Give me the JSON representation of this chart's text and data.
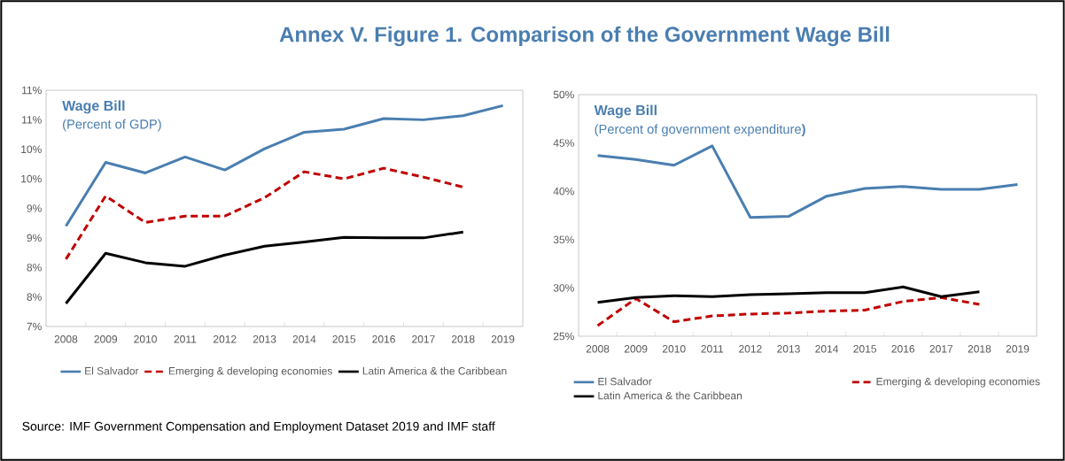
{
  "chart_data": [
    {
      "type": "line",
      "title": "Wage Bill",
      "subtitle": "(Percent of GDP)",
      "annotations": [
        "Annex V. Figure 1. Comparison of the Government Wage Bill",
        "Source: IMF Government Compensation and Employment Dataset 2019 and IMF staff"
      ],
      "categories": [
        "2008",
        "2009",
        "2010",
        "2011",
        "2012",
        "2013",
        "2014",
        "2015",
        "2016",
        "2017",
        "2018",
        "2019"
      ],
      "series": [
        {
          "name": "El Salvador",
          "color": "#4a7eb0",
          "line_style": "solid",
          "values": [
            8.7,
            9.78,
            9.6,
            9.87,
            9.65,
            10.01,
            10.29,
            10.34,
            10.52,
            10.5,
            10.57,
            10.74
          ]
        },
        {
          "name": "Emerging & developing economies",
          "color": "#c00000",
          "line_style": "dashed",
          "values": [
            8.14,
            9.21,
            8.76,
            8.87,
            8.87,
            9.18,
            9.62,
            9.5,
            9.68,
            9.53,
            9.36,
            null
          ]
        },
        {
          "name": "Latin America & the Caribbean",
          "color": "#000000",
          "line_style": "solid",
          "values": [
            7.39,
            8.24,
            8.08,
            8.02,
            8.21,
            8.36,
            8.43,
            8.51,
            8.5,
            8.5,
            8.6,
            null
          ]
        }
      ],
      "ylim": [
        7,
        11
      ],
      "yticks": [
        {
          "value": 7,
          "label": "7%"
        },
        {
          "value": 7.5,
          "label": "8%"
        },
        {
          "value": 8,
          "label": "8%"
        },
        {
          "value": 8.5,
          "label": "9%"
        },
        {
          "value": 9,
          "label": "9%"
        },
        {
          "value": 9.5,
          "label": "10%"
        },
        {
          "value": 10,
          "label": "10%"
        },
        {
          "value": 10.5,
          "label": "11%"
        },
        {
          "value": 11,
          "label": "11%"
        }
      ],
      "legend": "bottom"
    },
    {
      "type": "line",
      "title": "Wage Bill",
      "subtitle": "(Percent of government expenditure**)**",
      "categories": [
        "2008",
        "2009",
        "2010",
        "2011",
        "2012",
        "2013",
        "2014",
        "2015",
        "2016",
        "2017",
        "2018",
        "2019"
      ],
      "series": [
        {
          "name": "El Salvador",
          "color": "#4a7eb0",
          "line_style": "solid",
          "values": [
            43.7,
            43.3,
            42.7,
            44.7,
            37.3,
            37.4,
            39.5,
            40.3,
            40.5,
            40.2,
            40.2,
            40.7
          ]
        },
        {
          "name": "Emerging & developing economies",
          "color": "#c00000",
          "line_style": "dashed",
          "values": [
            26.1,
            28.9,
            26.5,
            27.1,
            27.3,
            27.4,
            27.6,
            27.7,
            28.6,
            29.0,
            28.3,
            null
          ]
        },
        {
          "name": "Latin America & the Caribbean",
          "color": "#000000",
          "line_style": "solid",
          "values": [
            28.5,
            29.0,
            29.2,
            29.1,
            29.3,
            29.4,
            29.5,
            29.5,
            30.1,
            29.1,
            29.6,
            null
          ]
        }
      ],
      "ylim": [
        25,
        50
      ],
      "yticks": [
        {
          "value": 25,
          "label": "25%"
        },
        {
          "value": 30,
          "label": "30%"
        },
        {
          "value": 35,
          "label": "35%"
        },
        {
          "value": 40,
          "label": "40%"
        },
        {
          "value": 45,
          "label": "45%"
        },
        {
          "value": 50,
          "label": "50%"
        }
      ],
      "legend": "bottom"
    }
  ]
}
